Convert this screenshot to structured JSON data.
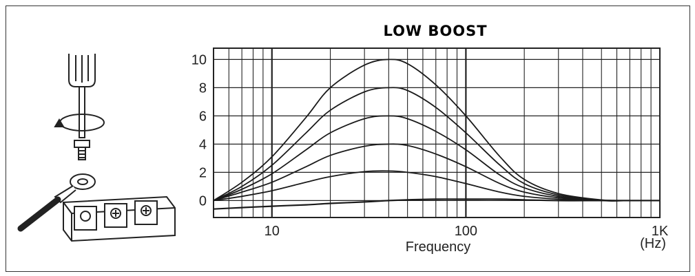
{
  "chart_data": {
    "type": "line",
    "title": "LOW BOOST",
    "xlabel": "Frequency",
    "xunit": "(Hz)",
    "ylabel": "",
    "xscale": "log",
    "xlim": [
      5,
      1000
    ],
    "ylim": [
      -1.2,
      10.8
    ],
    "x_ticks": [
      {
        "value": 10,
        "label": "10"
      },
      {
        "value": 100,
        "label": "100"
      },
      {
        "value": 1000,
        "label": "1K"
      }
    ],
    "y_ticks": [
      0,
      2,
      4,
      6,
      8,
      10
    ],
    "grid": true,
    "legend": "none",
    "x": [
      5,
      7,
      10,
      15,
      20,
      30,
      40,
      50,
      70,
      100,
      150,
      200,
      300,
      500,
      700,
      1000
    ],
    "series": [
      {
        "values": [
          -0.6,
          -0.5,
          -0.4,
          -0.3,
          -0.2,
          -0.1,
          0.0,
          0.05,
          0.1,
          0.1,
          0.1,
          0.05,
          0.0,
          0.0,
          0.0,
          0.0
        ]
      },
      {
        "values": [
          0.0,
          0.3,
          0.7,
          1.3,
          1.7,
          2.05,
          2.1,
          2.0,
          1.7,
          1.2,
          0.6,
          0.3,
          0.1,
          0.0,
          0.0,
          0.0
        ]
      },
      {
        "values": [
          0.0,
          0.6,
          1.3,
          2.4,
          3.2,
          3.85,
          4.0,
          3.9,
          3.3,
          2.4,
          1.2,
          0.6,
          0.2,
          0.0,
          0.0,
          0.0
        ]
      },
      {
        "values": [
          0.0,
          0.8,
          1.9,
          3.6,
          4.8,
          5.8,
          6.0,
          5.8,
          4.9,
          3.6,
          1.8,
          0.9,
          0.3,
          0.0,
          0.0,
          0.0
        ]
      },
      {
        "values": [
          0.0,
          1.0,
          2.5,
          4.8,
          6.4,
          7.7,
          8.0,
          7.8,
          6.6,
          4.8,
          2.5,
          1.2,
          0.4,
          0.0,
          0.0,
          0.0
        ]
      },
      {
        "values": [
          0.0,
          1.3,
          3.1,
          5.9,
          8.0,
          9.6,
          10.0,
          9.7,
          8.2,
          6.0,
          3.1,
          1.5,
          0.5,
          0.05,
          0.0,
          0.0
        ]
      }
    ]
  }
}
